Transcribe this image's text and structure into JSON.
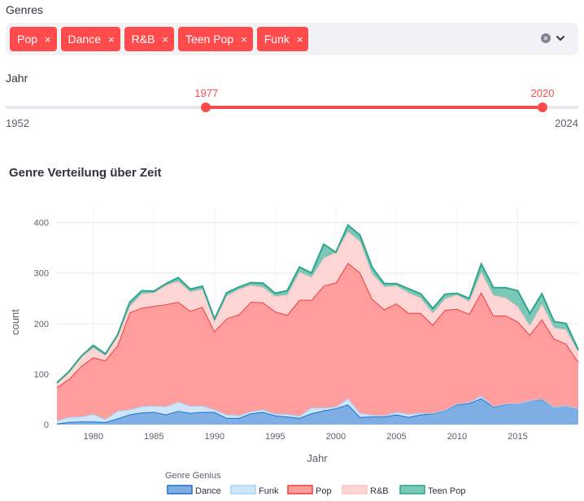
{
  "genres": {
    "label": "Genres",
    "tags": [
      {
        "label": "Pop",
        "remove": "×"
      },
      {
        "label": "Dance",
        "remove": "×"
      },
      {
        "label": "R&B",
        "remove": "×"
      },
      {
        "label": "Teen Pop",
        "remove": "×"
      },
      {
        "label": "Funk",
        "remove": "×"
      }
    ],
    "clear_icon": "×"
  },
  "year": {
    "label": "Jahr",
    "min": 1952,
    "max": 2024,
    "start": 1977,
    "end": 2020,
    "min_label": "1952",
    "max_label": "2024",
    "start_label": "1977",
    "end_label": "2020"
  },
  "chart_title": "Genre Verteilung über Zeit",
  "chart_data": {
    "type": "area",
    "stacked": true,
    "x": [
      1977,
      1978,
      1979,
      1980,
      1981,
      1982,
      1983,
      1984,
      1985,
      1986,
      1987,
      1988,
      1989,
      1990,
      1991,
      1992,
      1993,
      1994,
      1995,
      1996,
      1997,
      1998,
      1999,
      2000,
      2001,
      2002,
      2003,
      2004,
      2005,
      2006,
      2007,
      2008,
      2009,
      2010,
      2011,
      2012,
      2013,
      2014,
      2015,
      2016,
      2017,
      2018,
      2019,
      2020
    ],
    "series": [
      {
        "name": "Dance",
        "color": "#1f6fcf",
        "fill": "#7eaee3",
        "values": [
          2,
          5,
          6,
          6,
          5,
          12,
          20,
          24,
          25,
          20,
          27,
          23,
          25,
          25,
          13,
          13,
          22,
          25,
          18,
          16,
          13,
          22,
          28,
          32,
          40,
          15,
          16,
          16,
          20,
          15,
          20,
          22,
          28,
          40,
          42,
          52,
          35,
          40,
          42,
          48,
          50,
          35,
          38,
          32
        ]
      },
      {
        "name": "Funk",
        "color": "#a5d3f5",
        "fill": "#cfe6fa",
        "values": [
          6,
          10,
          10,
          15,
          6,
          15,
          10,
          12,
          12,
          16,
          18,
          14,
          12,
          5,
          7,
          5,
          4,
          5,
          3,
          5,
          4,
          12,
          5,
          3,
          12,
          8,
          3,
          2,
          5,
          6,
          3,
          1,
          1,
          1,
          2,
          5,
          1,
          1,
          0,
          0,
          1,
          0,
          0,
          0
        ]
      },
      {
        "name": "Pop",
        "color": "#f03c3c",
        "fill": "#ff9c9c",
        "values": [
          66,
          75,
          100,
          112,
          116,
          130,
          192,
          195,
          198,
          202,
          198,
          188,
          196,
          155,
          190,
          200,
          217,
          212,
          203,
          196,
          230,
          213,
          242,
          246,
          268,
          278,
          230,
          210,
          215,
          200,
          198,
          175,
          198,
          188,
          175,
          205,
          180,
          175,
          162,
          130,
          158,
          135,
          122,
          92
        ]
      },
      {
        "name": "R&B",
        "color": "#ffc4c4",
        "fill": "#ffd6d6",
        "values": [
          7,
          13,
          18,
          19,
          10,
          18,
          12,
          28,
          26,
          38,
          41,
          38,
          35,
          20,
          45,
          50,
          33,
          30,
          30,
          40,
          55,
          45,
          55,
          60,
          62,
          62,
          50,
          45,
          35,
          40,
          30,
          23,
          22,
          28,
          25,
          40,
          40,
          35,
          30,
          18,
          30,
          22,
          28,
          20
        ]
      },
      {
        "name": "Teen Pop",
        "color": "#2ca58d",
        "fill": "#79c8b8",
        "values": [
          2,
          2,
          1,
          5,
          3,
          2,
          8,
          6,
          3,
          3,
          7,
          5,
          6,
          4,
          6,
          4,
          5,
          8,
          6,
          8,
          10,
          8,
          27,
          0,
          13,
          12,
          12,
          6,
          4,
          8,
          8,
          9,
          9,
          3,
          6,
          16,
          15,
          20,
          31,
          24,
          20,
          12,
          12,
          4
        ]
      }
    ],
    "xlabel": "Jahr",
    "ylabel": "count",
    "xticks": [
      1980,
      1985,
      1990,
      1995,
      2000,
      2005,
      2010,
      2015
    ],
    "yticks": [
      0,
      100,
      200,
      300,
      400
    ],
    "xlim": [
      1977,
      2020
    ],
    "ylim": [
      0,
      430
    ],
    "grid": true,
    "legend_title": "Genre Genius",
    "legend_position": "bottom"
  }
}
